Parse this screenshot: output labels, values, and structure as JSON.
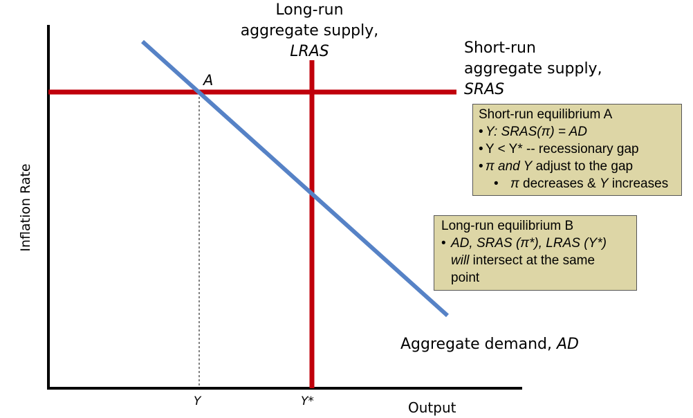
{
  "colors": {
    "lras": "#c0000b",
    "sras": "#c0000b",
    "ad": "#5682c6",
    "axes": "#000000",
    "box_fill": "#ddd6a6"
  },
  "diagram": {
    "lras_label": {
      "line1": "Long-run",
      "line2": "aggregate supply,",
      "line3": "LRAS"
    },
    "sras_label": {
      "line1": "Short-run",
      "line2": "aggregate supply,",
      "line3": "SRAS"
    },
    "ad_label": {
      "text": "Aggregate demand, ",
      "abbr": "AD"
    },
    "y_axis_label": "Inflation Rate",
    "x_axis_label": "Output",
    "x_ticks": {
      "y": "Y",
      "y_star": "Y*"
    },
    "point_a": "A"
  },
  "box_a": {
    "title": "Short-run equilibrium A",
    "l1": "Y: SRAS(π) = AD",
    "l2": "Y < Y* -- recessionary gap",
    "l3_italic": "π and Y",
    "l3_rest": " adjust to the gap",
    "l4_pi": "π",
    "l4_a": " decreases & ",
    "l4_y": "Y",
    "l4_b": " increases"
  },
  "box_b": {
    "title": "Long-run equilibrium B",
    "l1": "AD, SRAS (π*), LRAS (Y*)",
    "l2_italic": "will",
    "l2_rest": " intersect at the same",
    "l3": "point"
  }
}
